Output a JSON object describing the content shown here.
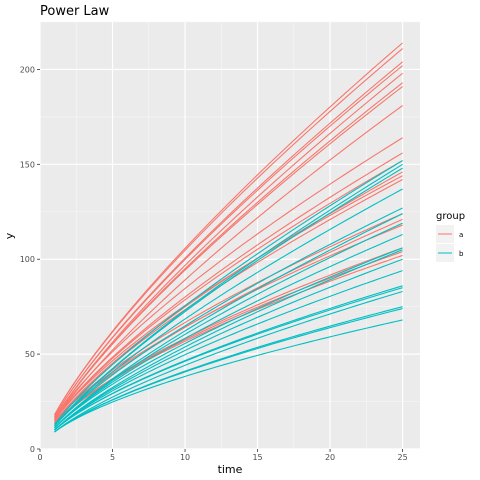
{
  "chart_data": {
    "type": "line",
    "title": "Power Law",
    "xlabel": "time",
    "ylabel": "y",
    "xlim": [
      0,
      26.2
    ],
    "ylim": [
      0,
      225
    ],
    "x_ticks": [
      0,
      5,
      10,
      15,
      20,
      25
    ],
    "y_ticks": [
      0,
      50,
      100,
      150,
      200
    ],
    "grid": true,
    "legend": {
      "title": "group",
      "placement": "right"
    },
    "x": [
      1,
      25
    ],
    "series": [
      {
        "name": "a",
        "color": "#F8766D",
        "lines": [
          {
            "start": 18,
            "end": 214
          },
          {
            "start": 18,
            "end": 211
          },
          {
            "start": 17,
            "end": 204
          },
          {
            "start": 17,
            "end": 202
          },
          {
            "start": 16,
            "end": 198
          },
          {
            "start": 16,
            "end": 193
          },
          {
            "start": 16,
            "end": 191
          },
          {
            "start": 15,
            "end": 181
          },
          {
            "start": 16,
            "end": 164
          },
          {
            "start": 15,
            "end": 156
          },
          {
            "start": 15,
            "end": 152
          },
          {
            "start": 14,
            "end": 146
          },
          {
            "start": 15,
            "end": 144
          },
          {
            "start": 14,
            "end": 142
          },
          {
            "start": 14,
            "end": 124
          },
          {
            "start": 13,
            "end": 121
          },
          {
            "start": 14,
            "end": 118
          },
          {
            "start": 13,
            "end": 106
          },
          {
            "start": 13,
            "end": 104
          },
          {
            "start": 13,
            "end": 102
          }
        ]
      },
      {
        "name": "b",
        "color": "#00BFC4",
        "lines": [
          {
            "start": 13,
            "end": 152
          },
          {
            "start": 12,
            "end": 150
          },
          {
            "start": 12,
            "end": 148
          },
          {
            "start": 12,
            "end": 137
          },
          {
            "start": 12,
            "end": 127
          },
          {
            "start": 11,
            "end": 124
          },
          {
            "start": 11,
            "end": 119
          },
          {
            "start": 11,
            "end": 113
          },
          {
            "start": 11,
            "end": 106
          },
          {
            "start": 10,
            "end": 105
          },
          {
            "start": 10,
            "end": 100
          },
          {
            "start": 10,
            "end": 94
          },
          {
            "start": 10,
            "end": 86
          },
          {
            "start": 10,
            "end": 85
          },
          {
            "start": 9,
            "end": 83
          },
          {
            "start": 9,
            "end": 75
          },
          {
            "start": 9,
            "end": 74
          },
          {
            "start": 9,
            "end": 68
          }
        ]
      }
    ]
  }
}
